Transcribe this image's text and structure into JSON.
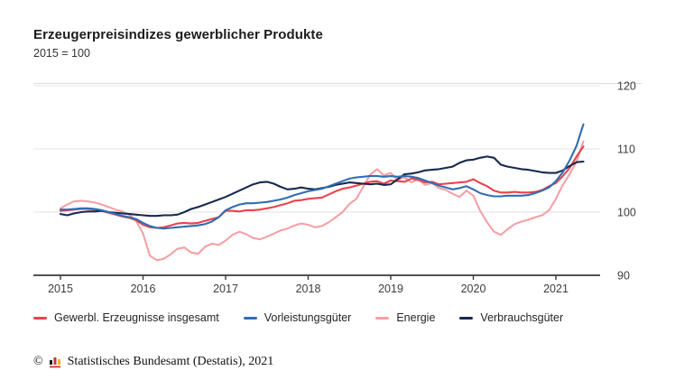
{
  "header": {
    "title": "Erzeugerpreisindizes gewerblicher Produkte",
    "subtitle": "2015 = 100"
  },
  "chart_data": {
    "type": "line",
    "title": "Erzeugerpreisindizes gewerblicher Produkte",
    "subtitle": "2015 = 100",
    "frequency": "monthly",
    "x_start": "2015-01",
    "x_end": "2021-05",
    "x_tick_labels": [
      "2015",
      "2016",
      "2017",
      "2018",
      "2019",
      "2020",
      "2021"
    ],
    "ylim": [
      90,
      120
    ],
    "y_ticks": [
      90,
      100,
      110,
      120
    ],
    "grid": true,
    "legend_position": "bottom",
    "series": [
      {
        "name": "Gewerbl. Erzeugnisse insgesamt",
        "color": "#e8444d",
        "values": [
          100.2,
          100.3,
          100.4,
          100.5,
          100.5,
          100.4,
          100.2,
          99.9,
          99.6,
          99.3,
          99.1,
          98.7,
          98.0,
          97.6,
          97.5,
          97.6,
          97.9,
          98.2,
          98.3,
          98.2,
          98.3,
          98.6,
          98.9,
          99.2,
          100.2,
          100.2,
          100.1,
          100.3,
          100.3,
          100.4,
          100.6,
          100.8,
          101.1,
          101.4,
          101.8,
          101.9,
          102.1,
          102.2,
          102.3,
          102.8,
          103.3,
          103.7,
          103.9,
          104.2,
          104.5,
          104.8,
          104.9,
          104.5,
          105.0,
          104.9,
          104.8,
          105.3,
          105.1,
          104.7,
          104.8,
          104.4,
          104.5,
          104.6,
          104.7,
          104.8,
          105.2,
          104.6,
          104.1,
          103.4,
          103.1,
          103.1,
          103.2,
          103.1,
          103.1,
          103.2,
          103.5,
          104.1,
          104.6,
          105.7,
          107.0,
          108.8,
          110.4
        ]
      },
      {
        "name": "Vorleistungsgüter",
        "color": "#2f6eb3",
        "values": [
          100.4,
          100.4,
          100.5,
          100.6,
          100.6,
          100.5,
          100.3,
          100.0,
          99.7,
          99.4,
          99.2,
          98.9,
          98.3,
          97.8,
          97.5,
          97.4,
          97.5,
          97.6,
          97.7,
          97.8,
          97.9,
          98.1,
          98.5,
          99.2,
          100.3,
          100.8,
          101.2,
          101.4,
          101.4,
          101.5,
          101.6,
          101.8,
          102.0,
          102.3,
          102.7,
          103.0,
          103.3,
          103.5,
          103.7,
          104.1,
          104.5,
          104.9,
          105.3,
          105.5,
          105.6,
          105.7,
          105.7,
          105.6,
          105.7,
          105.6,
          105.7,
          105.6,
          105.4,
          105.0,
          104.6,
          104.2,
          103.9,
          103.6,
          103.8,
          104.1,
          103.6,
          103.0,
          102.7,
          102.5,
          102.5,
          102.6,
          102.6,
          102.6,
          102.7,
          103.0,
          103.4,
          103.9,
          104.9,
          106.3,
          108.2,
          110.5,
          113.9
        ]
      },
      {
        "name": "Energie",
        "color": "#f5a0a5",
        "values": [
          100.6,
          101.2,
          101.7,
          101.8,
          101.7,
          101.5,
          101.2,
          100.8,
          100.4,
          100.1,
          99.6,
          98.6,
          96.6,
          93.1,
          92.4,
          92.6,
          93.3,
          94.2,
          94.4,
          93.6,
          93.4,
          94.5,
          95.0,
          94.8,
          95.5,
          96.4,
          96.9,
          96.5,
          95.9,
          95.7,
          96.1,
          96.6,
          97.1,
          97.4,
          97.9,
          98.2,
          98.0,
          97.6,
          97.8,
          98.4,
          99.2,
          100.0,
          101.3,
          102.1,
          104.0,
          105.9,
          106.8,
          105.8,
          106.2,
          105.1,
          105.5,
          104.7,
          105.2,
          104.3,
          104.6,
          103.8,
          103.5,
          102.9,
          102.4,
          103.4,
          102.6,
          100.2,
          98.4,
          96.9,
          96.4,
          97.3,
          98.1,
          98.5,
          98.8,
          99.2,
          99.5,
          100.3,
          102.1,
          104.3,
          106.0,
          108.0,
          111.2
        ]
      },
      {
        "name": "Verbrauchsgüter",
        "color": "#17294e",
        "values": [
          99.7,
          99.5,
          99.8,
          100.0,
          100.1,
          100.1,
          100.2,
          100.0,
          99.9,
          99.8,
          99.7,
          99.6,
          99.5,
          99.4,
          99.4,
          99.5,
          99.5,
          99.6,
          100.0,
          100.5,
          100.8,
          101.2,
          101.6,
          102.0,
          102.4,
          102.9,
          103.4,
          103.9,
          104.4,
          104.7,
          104.8,
          104.5,
          104.0,
          103.6,
          103.7,
          103.9,
          103.7,
          103.6,
          103.8,
          104.0,
          104.3,
          104.5,
          104.7,
          104.6,
          104.5,
          104.4,
          104.5,
          104.3,
          104.4,
          105.2,
          106.0,
          106.1,
          106.3,
          106.6,
          106.7,
          106.8,
          107.0,
          107.2,
          107.8,
          108.2,
          108.3,
          108.6,
          108.8,
          108.6,
          107.5,
          107.2,
          107.0,
          106.8,
          106.7,
          106.5,
          106.3,
          106.2,
          106.2,
          106.6,
          107.3,
          107.9,
          108.0
        ]
      }
    ],
    "colors": {
      "grid": "#e3e3e3",
      "axis": "#3a3a3a",
      "tick_text": "#3d3d3d"
    }
  },
  "footer": {
    "copyright_symbol": "©",
    "text": "Statistisches Bundesamt (Destatis), 2021",
    "logo_colors": {
      "bar1": "#1a1a1a",
      "bar2": "#d22f2f",
      "bar3": "#f0b400",
      "base": "#d22f2f"
    }
  }
}
